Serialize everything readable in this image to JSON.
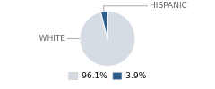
{
  "chart_data": {
    "type": "pie",
    "categories": [
      "WHITE",
      "HISPANIC"
    ],
    "values": [
      96.1,
      3.9
    ],
    "value_labels": [
      "96.1%",
      "3.9%"
    ],
    "colors": [
      "#d6dce4",
      "#2e5f8a"
    ],
    "legend": "bottom"
  }
}
